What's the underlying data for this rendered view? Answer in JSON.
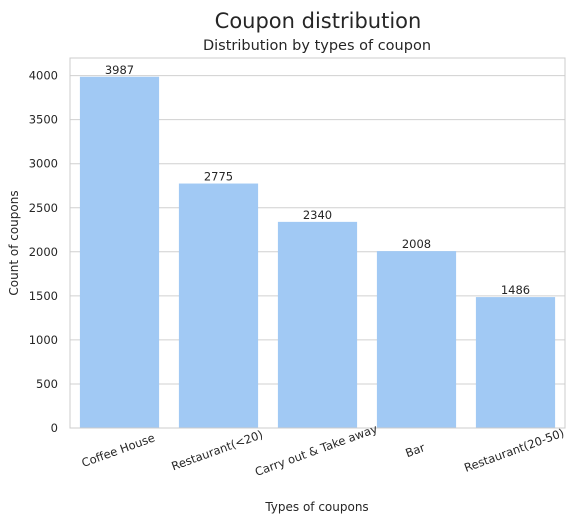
{
  "suptitle": "Coupon distribution",
  "chart_data": {
    "type": "bar",
    "title": "Distribution by types of coupon",
    "xlabel": "Types of coupons",
    "ylabel": "Count of coupons",
    "categories": [
      "Coffee House",
      "Restaurant(<20)",
      "Carry out & Take away",
      "Bar",
      "Restaurant(20-50)"
    ],
    "values": [
      3987,
      2775,
      2340,
      2008,
      1486
    ],
    "data_labels": [
      "3987",
      "2775",
      "2340",
      "2008",
      "1486"
    ],
    "ylim": [
      0,
      4200
    ],
    "yticks": [
      0,
      500,
      1000,
      1500,
      2000,
      2500,
      3000,
      3500,
      4000
    ],
    "grid": true,
    "bar_color": "#a1c9f4",
    "xtick_rotation": -20
  }
}
